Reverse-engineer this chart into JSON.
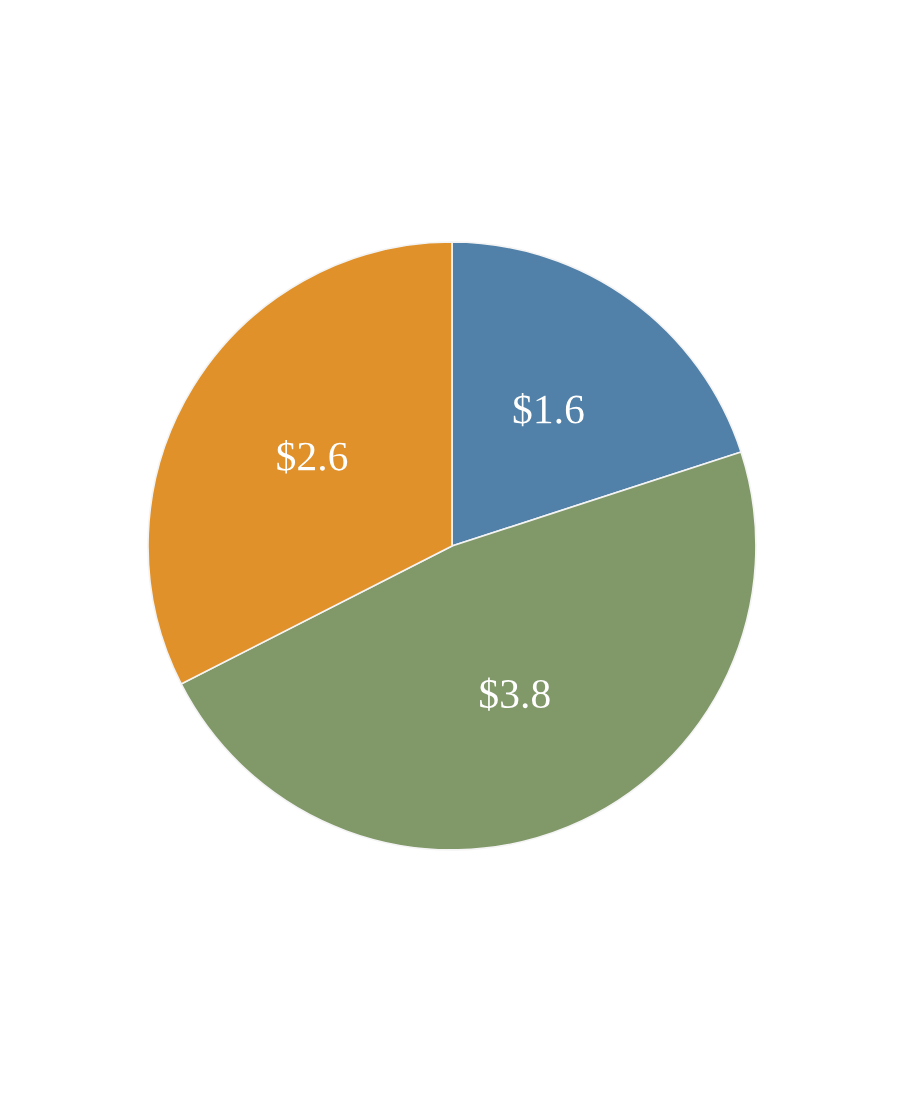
{
  "chart_data": {
    "type": "pie",
    "categories": [
      null,
      null,
      null
    ],
    "values": [
      1.6,
      3.8,
      2.6
    ],
    "colors": [
      "#5181a8",
      "#819869",
      "#e0912a"
    ],
    "value_labels": [
      "$1.6",
      "$3.8",
      "$2.6"
    ]
  }
}
